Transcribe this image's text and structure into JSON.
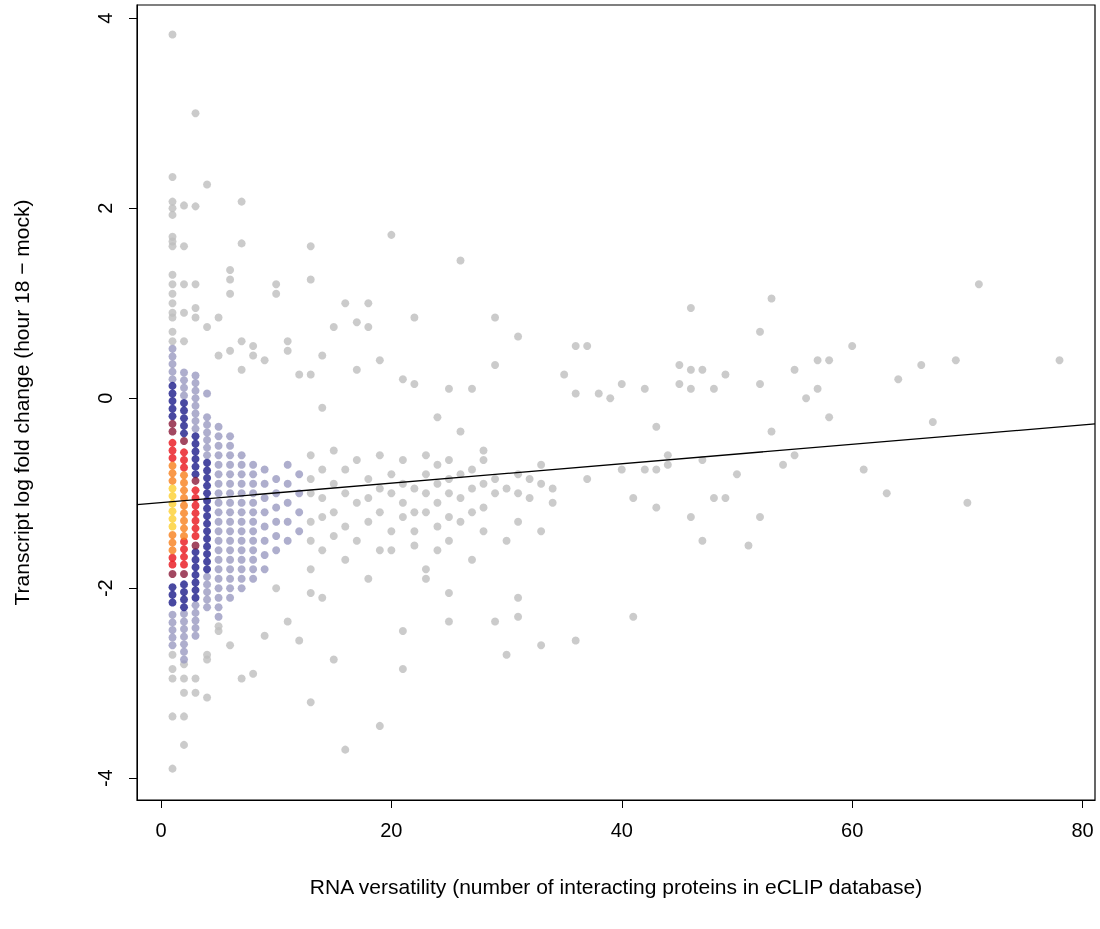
{
  "chart_data": {
    "type": "scatter",
    "xlabel": "RNA versatility (number of interacting proteins in eCLIP database)",
    "ylabel": "Transcript log fold change (hour 18 − mock)",
    "xlim": [
      -2.08,
      81.08
    ],
    "ylim": [
      -4.23,
      4.14
    ],
    "xticks": [
      0,
      20,
      40,
      60,
      80
    ],
    "yticks": [
      -4,
      -2,
      0,
      2,
      4
    ],
    "grid": false,
    "marker": "circle",
    "series": [
      {
        "color": "#bebebe",
        "x": [
          1,
          1,
          1,
          1,
          1,
          1,
          1,
          1,
          1,
          1,
          1,
          1,
          1,
          1,
          1,
          1,
          1,
          1,
          1,
          1,
          1,
          2,
          2,
          2,
          2,
          2,
          2,
          2,
          2,
          2,
          2,
          3,
          3,
          3,
          3,
          3,
          3,
          3,
          4,
          4,
          4,
          4,
          4,
          5,
          5,
          5,
          5,
          6,
          6,
          6,
          6,
          6,
          7,
          7,
          7,
          7,
          7,
          8,
          8,
          8,
          9,
          9,
          10,
          10,
          10,
          11,
          11,
          11,
          12,
          12,
          13,
          13,
          13,
          13,
          13,
          13,
          13,
          13,
          13,
          13,
          13,
          14,
          14,
          14,
          14,
          14,
          14,
          14,
          15,
          15,
          15,
          15,
          15,
          15,
          16,
          16,
          16,
          16,
          16,
          16,
          17,
          17,
          17,
          17,
          17,
          18,
          18,
          18,
          18,
          18,
          18,
          19,
          19,
          19,
          19,
          19,
          19,
          20,
          20,
          20,
          20,
          20,
          21,
          21,
          21,
          21,
          21,
          21,
          21,
          22,
          22,
          22,
          22,
          22,
          22,
          23,
          23,
          23,
          23,
          23,
          23,
          24,
          24,
          24,
          24,
          24,
          24,
          25,
          25,
          25,
          25,
          25,
          25,
          25,
          25,
          26,
          26,
          26,
          26,
          26,
          27,
          27,
          27,
          27,
          27,
          28,
          28,
          28,
          28,
          28,
          29,
          29,
          29,
          29,
          29,
          30,
          30,
          30,
          31,
          31,
          31,
          31,
          31,
          31,
          32,
          32,
          33,
          33,
          33,
          33,
          34,
          34,
          35,
          36,
          36,
          36,
          37,
          37,
          38,
          39,
          40,
          40,
          41,
          41,
          42,
          42,
          43,
          43,
          43,
          44,
          44,
          45,
          45,
          46,
          46,
          46,
          46,
          47,
          47,
          47,
          48,
          48,
          49,
          49,
          50,
          51,
          52,
          52,
          52,
          53,
          53,
          54,
          55,
          55,
          56,
          57,
          57,
          58,
          58,
          60,
          61,
          63,
          64,
          66,
          67,
          69,
          70,
          71,
          78
        ],
        "values": [
          3.83,
          2.33,
          2.07,
          2.0,
          1.93,
          1.7,
          1.65,
          1.6,
          1.3,
          1.2,
          1.1,
          1.0,
          0.9,
          0.85,
          0.7,
          0.6,
          -2.7,
          -2.85,
          -2.95,
          -3.35,
          -3.9,
          2.03,
          1.6,
          1.2,
          0.9,
          0.6,
          -2.8,
          -2.95,
          -3.1,
          -3.35,
          -3.65,
          3.0,
          2.02,
          1.2,
          0.95,
          0.85,
          -2.95,
          -3.1,
          2.25,
          0.75,
          -2.7,
          -2.75,
          -3.15,
          0.85,
          0.45,
          -2.4,
          -2.45,
          1.35,
          1.25,
          1.1,
          0.5,
          -2.6,
          2.07,
          1.63,
          0.6,
          0.3,
          -2.95,
          0.55,
          0.45,
          -2.9,
          0.4,
          -2.5,
          1.2,
          1.1,
          -2.0,
          0.6,
          0.5,
          -2.35,
          0.25,
          -2.55,
          1.6,
          1.25,
          0.25,
          -0.6,
          -0.85,
          -1.0,
          -1.3,
          -1.5,
          -1.8,
          -2.05,
          -3.2,
          0.45,
          -0.1,
          -0.75,
          -1.05,
          -1.25,
          -1.6,
          -2.1,
          0.75,
          -0.55,
          -0.9,
          -1.2,
          -1.45,
          -2.75,
          1.0,
          -0.75,
          -1.0,
          -1.35,
          -1.7,
          -3.7,
          0.8,
          0.3,
          -0.65,
          -1.1,
          -1.5,
          1.0,
          0.75,
          -0.85,
          -1.05,
          -1.3,
          -1.9,
          0.4,
          -0.6,
          -0.95,
          -1.2,
          -1.6,
          -3.45,
          1.72,
          -0.8,
          -1.0,
          -1.4,
          -1.6,
          0.2,
          -0.65,
          -0.9,
          -1.1,
          -1.25,
          -2.45,
          -2.85,
          0.85,
          0.15,
          -0.95,
          -1.2,
          -1.4,
          -1.55,
          -0.6,
          -0.8,
          -1.0,
          -1.2,
          -1.8,
          -1.9,
          -0.2,
          -0.7,
          -0.9,
          -1.1,
          -1.35,
          -1.6,
          0.1,
          -0.65,
          -0.85,
          -1.0,
          -1.25,
          -1.5,
          -2.05,
          -2.35,
          1.45,
          -0.35,
          -0.8,
          -1.05,
          -1.3,
          0.1,
          -0.75,
          -0.95,
          -1.2,
          -1.7,
          -0.55,
          -0.65,
          -0.9,
          -1.15,
          -1.4,
          0.85,
          0.35,
          -0.85,
          -1.0,
          -2.35,
          -0.95,
          -1.5,
          -2.7,
          0.65,
          -0.8,
          -1.0,
          -1.3,
          -2.1,
          -2.3,
          -0.85,
          -1.05,
          -0.7,
          -0.9,
          -1.4,
          -2.6,
          -0.95,
          -1.1,
          0.25,
          0.55,
          0.05,
          -2.55,
          0.55,
          -0.85,
          0.05,
          0.0,
          0.15,
          -0.75,
          -1.05,
          -2.3,
          0.1,
          -0.75,
          -0.3,
          -0.75,
          -1.15,
          -0.6,
          -0.7,
          0.35,
          0.15,
          0.95,
          0.3,
          0.1,
          -1.25,
          0.3,
          -0.65,
          -1.5,
          0.1,
          -1.05,
          0.25,
          -1.05,
          -0.8,
          -1.55,
          0.7,
          0.15,
          -1.25,
          1.05,
          -0.35,
          -0.7,
          0.3,
          -0.6,
          0.0,
          0.4,
          0.1,
          0.4,
          -0.2,
          0.55,
          -0.75,
          -1.0,
          0.2,
          0.35,
          -0.25,
          0.4,
          -1.1,
          1.2,
          0.4
        ]
      },
      {
        "color": "#9a9ac0",
        "x": [
          1,
          1,
          1,
          1,
          1,
          1,
          1,
          1,
          1,
          1,
          2,
          2,
          2,
          2,
          2,
          2,
          2,
          2,
          2,
          2,
          2,
          3,
          3,
          3,
          3,
          3,
          3,
          3,
          3,
          3,
          3,
          3,
          3,
          3,
          4,
          4,
          4,
          4,
          4,
          4,
          4,
          4,
          4,
          4,
          4,
          4,
          5,
          5,
          5,
          5,
          5,
          5,
          5,
          5,
          5,
          5,
          5,
          5,
          5,
          5,
          5,
          5,
          5,
          5,
          5,
          5,
          5,
          6,
          6,
          6,
          6,
          6,
          6,
          6,
          6,
          6,
          6,
          6,
          6,
          6,
          6,
          6,
          6,
          6,
          6,
          7,
          7,
          7,
          7,
          7,
          7,
          7,
          7,
          7,
          7,
          7,
          7,
          7,
          7,
          7,
          8,
          8,
          8,
          8,
          8,
          8,
          8,
          8,
          8,
          8,
          8,
          8,
          8,
          9,
          9,
          9,
          9,
          9,
          9,
          9,
          9,
          10,
          10,
          10,
          10,
          10,
          10,
          11,
          11,
          11,
          11,
          11,
          12,
          12,
          12,
          12
        ],
        "values": [
          -2.6,
          -2.52,
          -2.44,
          -2.36,
          -2.28,
          0.2,
          0.28,
          0.36,
          0.44,
          0.52,
          -2.75,
          -2.67,
          -2.59,
          -2.51,
          -2.43,
          -2.35,
          -2.27,
          0.03,
          0.11,
          0.19,
          0.27,
          -2.5,
          -2.42,
          -2.34,
          -2.26,
          -2.18,
          -0.32,
          -0.24,
          -0.16,
          -0.08,
          0.0,
          0.08,
          0.16,
          0.24,
          -2.2,
          -2.12,
          -2.04,
          -1.96,
          -1.88,
          -0.6,
          -0.52,
          -0.44,
          -0.36,
          -0.28,
          -0.2,
          0.05,
          -2.3,
          -2.2,
          -2.1,
          -2.0,
          -1.9,
          -1.8,
          -1.7,
          -1.6,
          -1.5,
          -1.4,
          -1.3,
          -1.2,
          -1.1,
          -1.0,
          -0.9,
          -0.8,
          -0.7,
          -0.6,
          -0.5,
          -0.4,
          -0.3,
          -2.1,
          -2.0,
          -1.9,
          -1.8,
          -1.7,
          -1.6,
          -1.5,
          -1.4,
          -1.3,
          -1.2,
          -1.1,
          -1.0,
          -0.9,
          -0.8,
          -0.7,
          -0.6,
          -0.5,
          -0.4,
          -2.0,
          -1.9,
          -1.8,
          -1.7,
          -1.6,
          -1.5,
          -1.4,
          -1.3,
          -1.2,
          -1.1,
          -1.0,
          -0.9,
          -0.8,
          -0.7,
          -0.6,
          -1.9,
          -1.8,
          -1.7,
          -1.6,
          -1.5,
          -1.4,
          -1.3,
          -1.2,
          -1.1,
          -1.0,
          -0.9,
          -0.8,
          -0.7,
          -1.8,
          -1.65,
          -1.5,
          -1.35,
          -1.2,
          -1.05,
          -0.9,
          -0.75,
          -1.6,
          -1.45,
          -1.3,
          -1.15,
          -1.0,
          -0.85,
          -1.5,
          -1.3,
          -1.1,
          -0.9,
          -0.7,
          -1.4,
          -1.2,
          -1.0,
          -0.8
        ]
      },
      {
        "color": "#1c1c8a",
        "x": [
          1,
          1,
          1,
          1,
          1,
          1,
          1,
          1,
          2,
          2,
          2,
          2,
          2,
          2,
          2,
          2,
          2,
          3,
          3,
          3,
          3,
          3,
          3,
          3,
          3,
          3,
          3,
          3,
          3,
          3,
          4,
          4,
          4,
          4,
          4,
          4,
          4,
          4,
          4,
          4,
          4,
          4,
          4,
          4,
          4
        ],
        "values": [
          -2.15,
          -2.07,
          -1.99,
          -0.19,
          -0.11,
          -0.03,
          0.05,
          0.13,
          -2.2,
          -2.12,
          -2.04,
          -1.96,
          -0.37,
          -0.29,
          -0.21,
          -0.13,
          -0.05,
          -2.1,
          -2.02,
          -1.94,
          -1.86,
          -1.78,
          -1.7,
          -1.62,
          -0.8,
          -0.72,
          -0.64,
          -0.56,
          -0.48,
          -0.4,
          -1.8,
          -1.72,
          -1.64,
          -1.56,
          -1.48,
          -1.4,
          -1.32,
          -1.24,
          -1.16,
          -1.08,
          -1.0,
          -0.92,
          -0.84,
          -0.76,
          -0.68
        ]
      },
      {
        "color": "#8b1a3a",
        "x": [
          1,
          1,
          1,
          2,
          2,
          3,
          3
        ],
        "values": [
          -1.85,
          -0.35,
          -0.27,
          -1.85,
          -0.45,
          -1.55,
          -0.87
        ]
      },
      {
        "color": "#e8141c",
        "x": [
          1,
          1,
          1,
          1,
          1,
          2,
          2,
          2,
          2,
          2,
          2,
          2,
          3,
          3,
          3,
          3,
          3,
          3,
          3
        ],
        "values": [
          -1.75,
          -1.68,
          -0.63,
          -0.55,
          -0.47,
          -1.75,
          -1.67,
          -1.59,
          -1.51,
          -0.73,
          -0.65,
          -0.57,
          -1.45,
          -1.37,
          -1.29,
          -1.21,
          -1.13,
          -1.05,
          -0.97
        ]
      },
      {
        "color": "#f77f1c",
        "x": [
          1,
          1,
          1,
          1,
          1,
          1,
          2,
          2,
          2,
          2,
          2,
          2,
          2,
          2,
          2
        ],
        "values": [
          -1.6,
          -1.52,
          -1.44,
          -0.87,
          -0.79,
          -0.71,
          -1.45,
          -1.37,
          -1.29,
          -1.21,
          -1.13,
          -1.05,
          -0.97,
          -0.89,
          -0.81
        ]
      },
      {
        "color": "#fdd030",
        "x": [
          1,
          1,
          1,
          1,
          1,
          1
        ],
        "values": [
          -1.35,
          -1.27,
          -1.19,
          -1.11,
          -1.03,
          -0.95
        ]
      },
      {
        "type": "line",
        "marker": "none",
        "color": "#000000",
        "x": [
          -2.08,
          81.08
        ],
        "values": [
          -1.12,
          -0.27
        ]
      }
    ]
  }
}
